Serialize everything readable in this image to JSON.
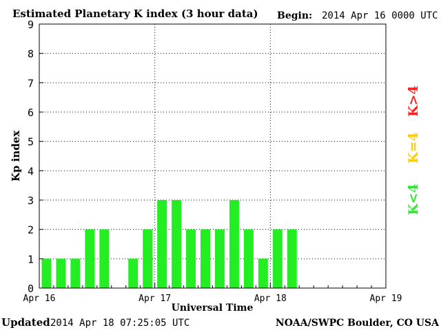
{
  "title": "Estimated Planetary K index (3 hour data)",
  "begin_label": "Begin:",
  "begin_value": "2014 Apr 16 0000 UTC",
  "updated_label": "Updated",
  "updated_value": "2014 Apr 18 07:25:05 UTC",
  "source": "NOAA/SWPC Boulder, CO USA",
  "legend": [
    {
      "label": "K>4",
      "color": "#ff2020"
    },
    {
      "label": "K=4",
      "color": "#ffcc00"
    },
    {
      "label": "K<4",
      "color": "#22ee22"
    }
  ],
  "chart_data": {
    "type": "bar",
    "xlabel": "Universal Time",
    "ylabel": "Kp index",
    "ylim": [
      0,
      9
    ],
    "y_ticks": [
      "0",
      "1",
      "2",
      "3",
      "4",
      "5",
      "6",
      "7",
      "8",
      "9"
    ],
    "x_tick_labels": [
      "Apr 16",
      "Apr 17",
      "Apr 18",
      "Apr 19"
    ],
    "grid": true,
    "bar_color": "#22ee22",
    "slots_per_day": 8,
    "days": 3,
    "values": [
      1,
      1,
      1,
      2,
      2,
      null,
      1,
      2,
      3,
      3,
      2,
      2,
      2,
      3,
      2,
      1,
      2,
      2
    ]
  }
}
